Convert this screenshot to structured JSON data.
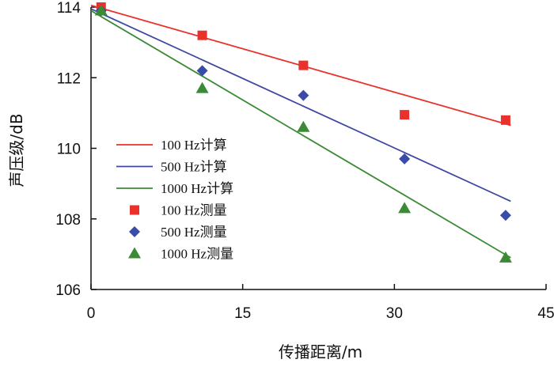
{
  "chart_data": {
    "type": "line+scatter",
    "title": "",
    "xlabel": "传播距离/m",
    "ylabel": "声压级/dB",
    "xlim": [
      0,
      45
    ],
    "ylim": [
      106,
      114
    ],
    "xticks": [
      0,
      15,
      30,
      45
    ],
    "yticks": [
      106,
      108,
      110,
      112,
      114
    ],
    "grid": false,
    "legend_position": "left-middle",
    "series": [
      {
        "name": "100 Hz计算",
        "kind": "line",
        "color": "#e8322b",
        "x": [
          0,
          41.5
        ],
        "y": [
          114.05,
          110.65
        ]
      },
      {
        "name": "500 Hz计算",
        "kind": "line",
        "color": "#3f48a0",
        "x": [
          0,
          41.5
        ],
        "y": [
          113.95,
          108.5
        ]
      },
      {
        "name": "1000 Hz计算",
        "kind": "line",
        "color": "#3b8a36",
        "x": [
          0,
          41.5
        ],
        "y": [
          113.9,
          106.9
        ]
      },
      {
        "name": "100 Hz测量",
        "kind": "scatter",
        "marker": "square",
        "color": "#e8322b",
        "x": [
          1,
          11,
          21,
          31,
          41
        ],
        "y": [
          114.0,
          113.2,
          112.35,
          110.95,
          110.8
        ]
      },
      {
        "name": "500 Hz测量",
        "kind": "scatter",
        "marker": "diamond",
        "color": "#3a4ba8",
        "x": [
          1,
          11,
          21,
          31,
          41
        ],
        "y": [
          113.9,
          112.2,
          111.5,
          109.7,
          108.1
        ]
      },
      {
        "name": "1000 Hz测量",
        "kind": "scatter",
        "marker": "triangle",
        "color": "#3b8a36",
        "x": [
          1,
          11,
          21,
          31,
          41
        ],
        "y": [
          113.9,
          111.7,
          110.6,
          108.3,
          106.9
        ]
      }
    ]
  }
}
